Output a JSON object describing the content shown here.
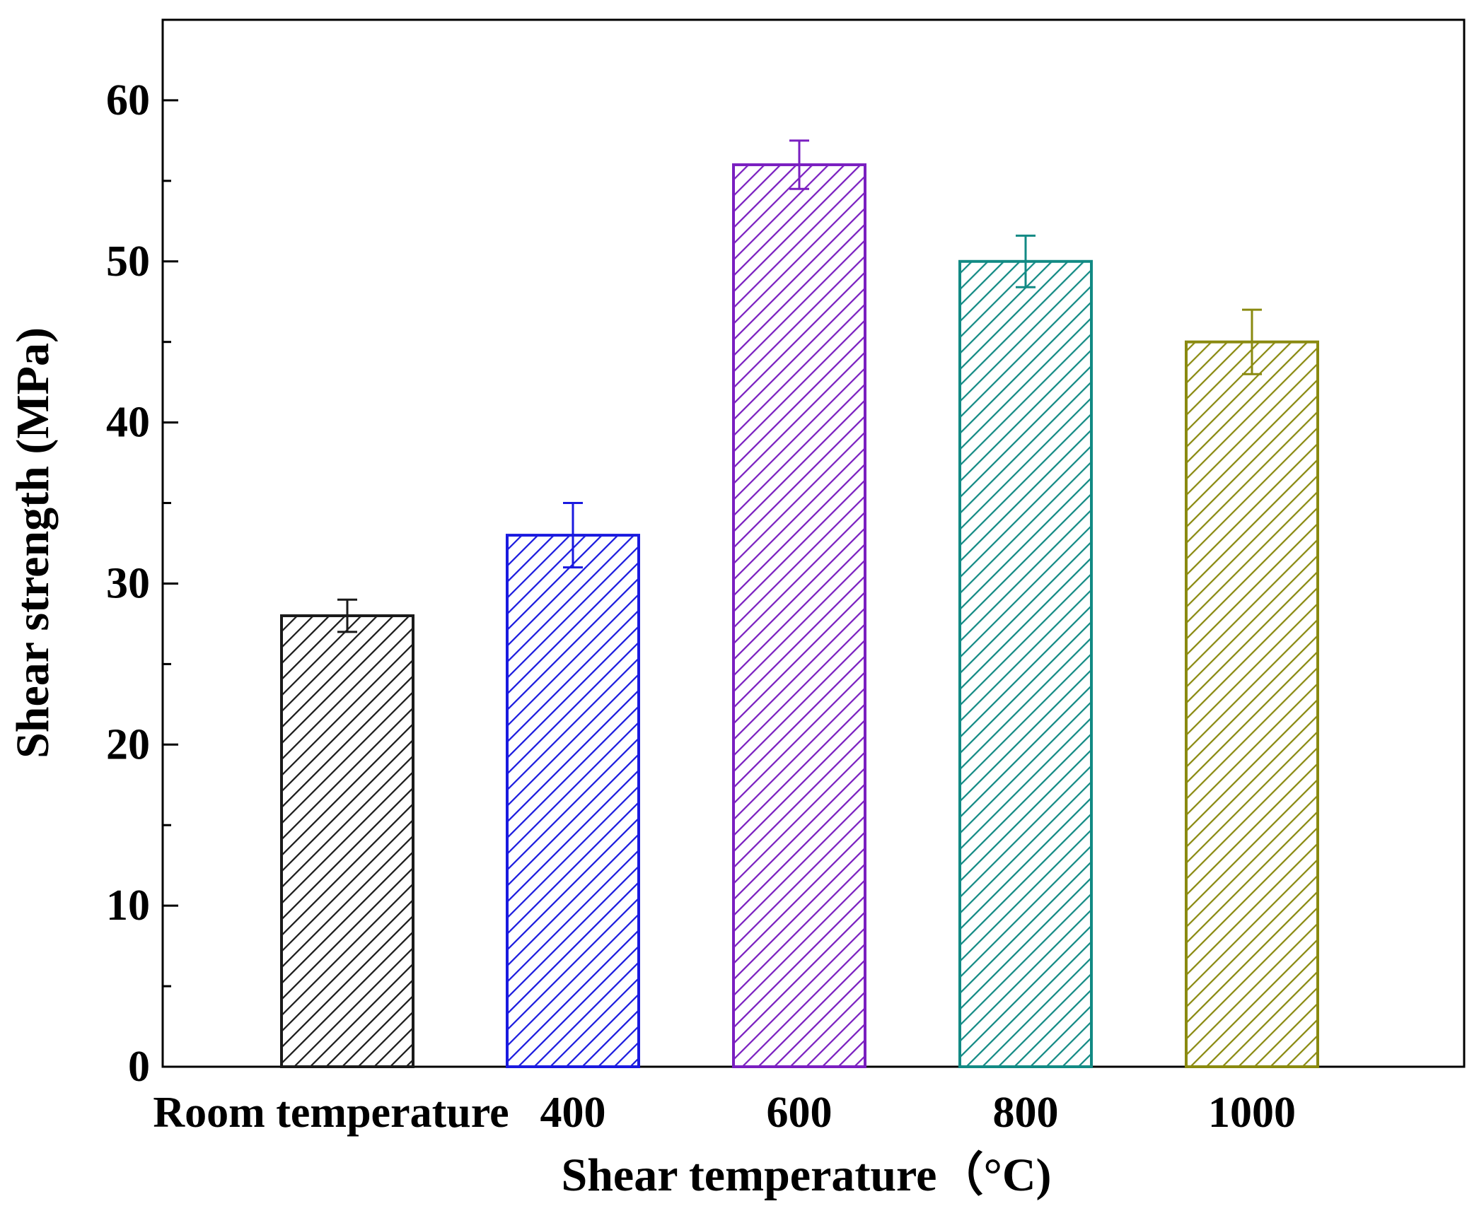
{
  "chart_data": {
    "type": "bar",
    "title": "",
    "xlabel": "Shear temperature（°C)",
    "ylabel": "Shear strength (MPa)",
    "categories": [
      "Room temperature",
      "400",
      "600",
      "800",
      "1000"
    ],
    "values": [
      28,
      33,
      56,
      50,
      45
    ],
    "errors": [
      1.0,
      2.0,
      1.5,
      1.6,
      2.0
    ],
    "colors": [
      "#1a1a1a",
      "#1a1adf",
      "#7a1fc0",
      "#128a84",
      "#8a8a10"
    ],
    "ylim": [
      0,
      65
    ],
    "yticks": [
      0,
      10,
      20,
      30,
      40,
      50,
      60
    ],
    "ytick_labels": [
      "0",
      "10",
      "20",
      "30",
      "40",
      "50",
      "60"
    ],
    "fill_pattern": "diagonal-hatch",
    "grid": false,
    "legend": "none"
  }
}
